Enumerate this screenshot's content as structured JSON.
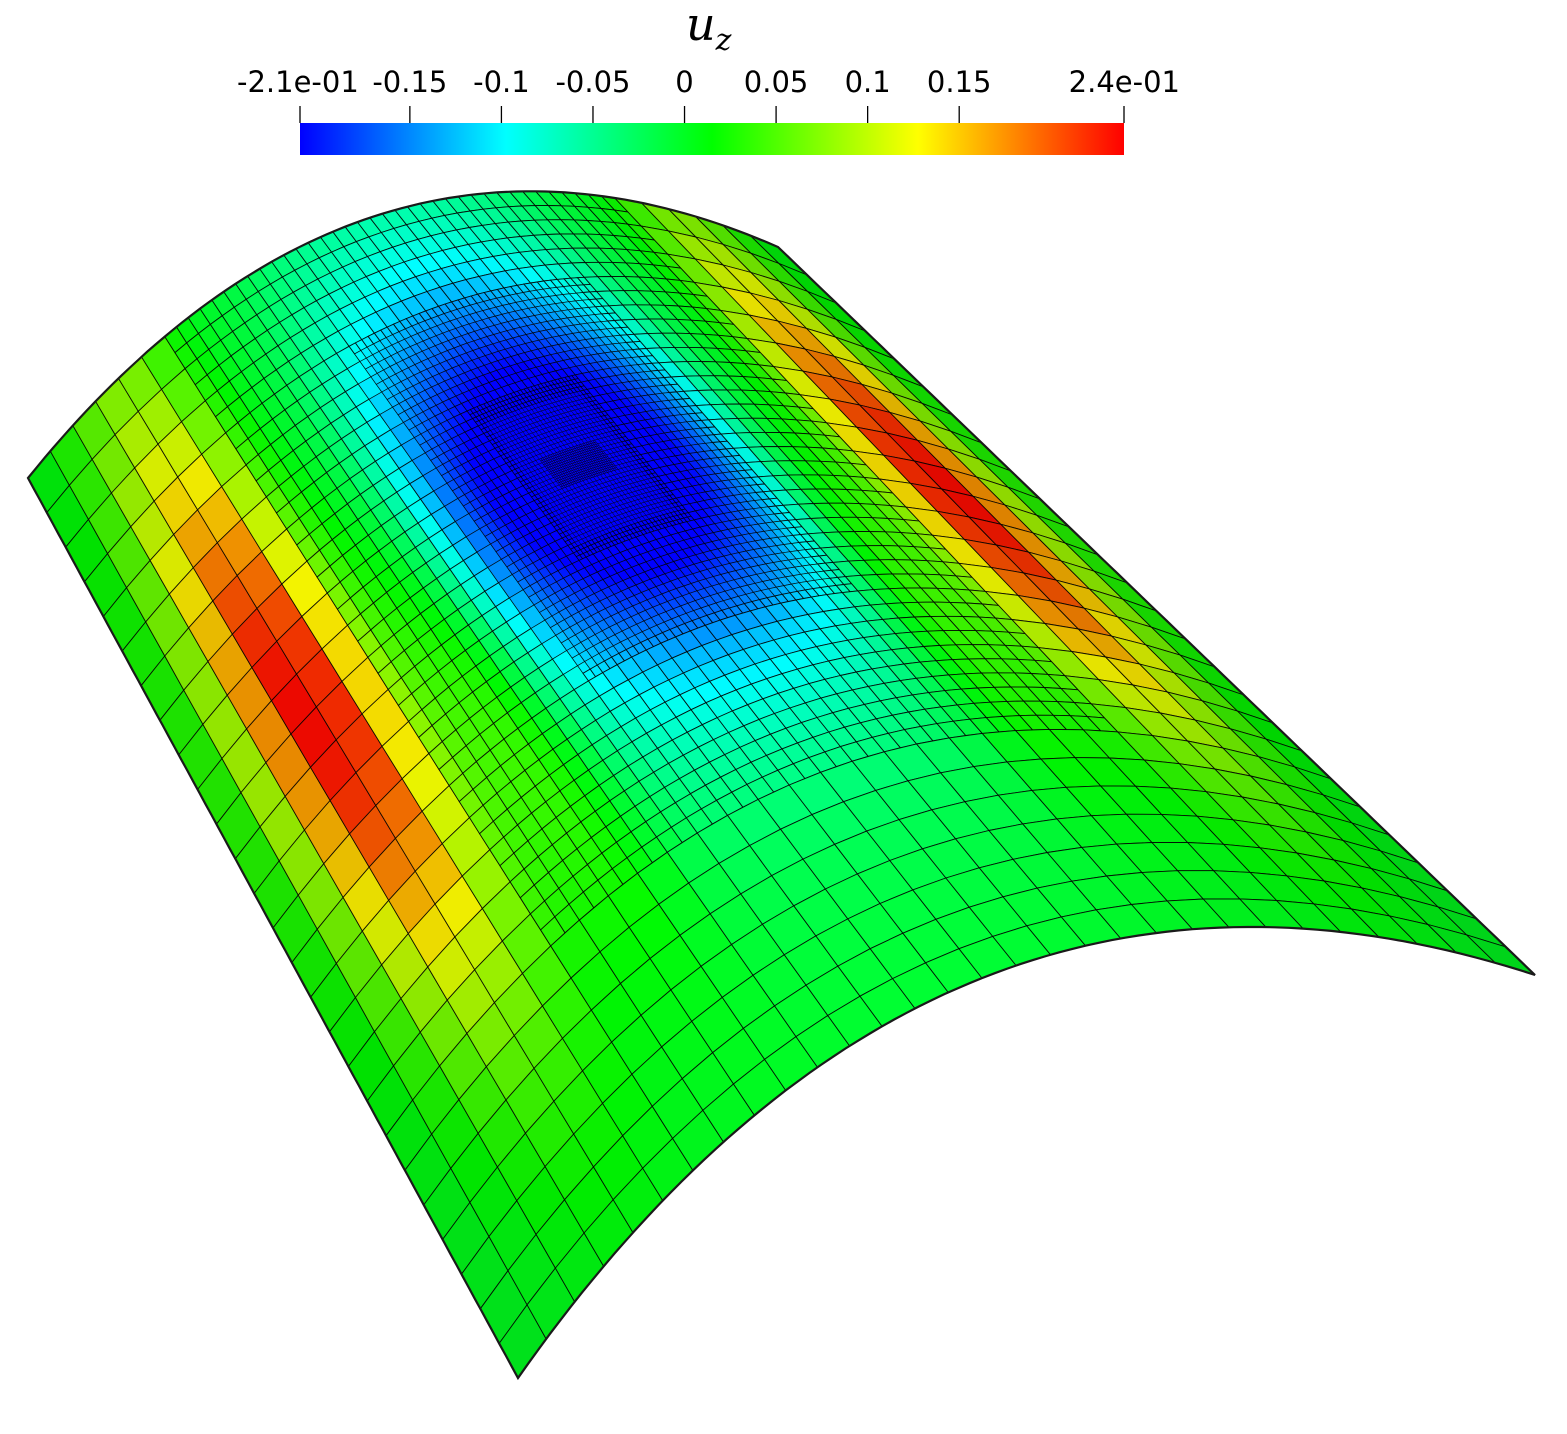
{
  "colorbar": {
    "title": "u",
    "title_subscript": "z",
    "min_label": "-2.1e-01",
    "max_label": "2.4e-01",
    "min": -0.21,
    "max": 0.24,
    "ticks": [
      {
        "value": -0.15,
        "label": "-0.15"
      },
      {
        "value": -0.1,
        "label": "-0.1"
      },
      {
        "value": -0.05,
        "label": "-0.05"
      },
      {
        "value": 0,
        "label": "0"
      },
      {
        "value": 0.05,
        "label": "0.05"
      },
      {
        "value": 0.1,
        "label": "0.1"
      },
      {
        "value": 0.15,
        "label": "0.15"
      }
    ],
    "colormap": [
      "#0000ff",
      "#00ffff",
      "#00ff00",
      "#ffff00",
      "#ff0000"
    ]
  },
  "field": {
    "quantity": "u_z",
    "center_min": -0.21,
    "edge_max": 0.24,
    "mesh_line_color": "#000000"
  }
}
